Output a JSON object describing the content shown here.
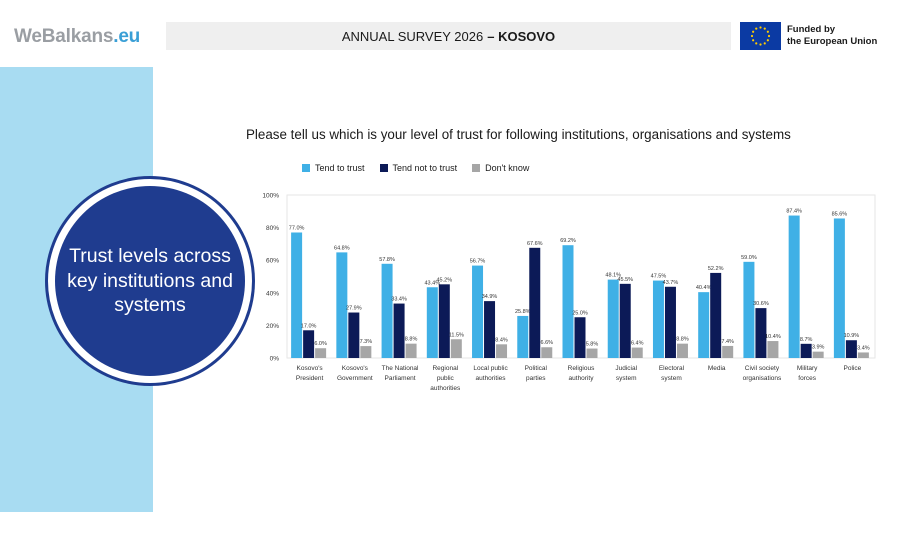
{
  "header": {
    "logo_main": "WeBalkans",
    "logo_tld": ".eu",
    "survey_label": "ANNUAL SURVEY 2026",
    "country": "– KOSOVO",
    "funding_line1": "Funded by",
    "funding_line2": "the European Union"
  },
  "side_panel": {
    "title": "Trust levels across key institutions and systems"
  },
  "colors": {
    "tend_to_trust": "#3fb0e6",
    "tend_not_to_trust": "#0c1a57",
    "dont_know": "#a6a6a6",
    "circle": "#1f3c8f",
    "side_panel": "#a8dcf2"
  },
  "chart_data": {
    "type": "bar",
    "title": "Please tell us which is your level of trust for following institutions, organisations and systems",
    "categories": [
      [
        "Kosovo's",
        "President"
      ],
      [
        "Kosovo's",
        "Government"
      ],
      [
        "The National",
        "Parliament"
      ],
      [
        "Regional",
        "public",
        "authorities"
      ],
      [
        "Local public",
        "authorities"
      ],
      [
        "Political",
        "parties"
      ],
      [
        "Religious",
        "authority"
      ],
      [
        "Judicial",
        "system"
      ],
      [
        "Electoral",
        "system"
      ],
      [
        "Media"
      ],
      [
        "Civil society",
        "organisations"
      ],
      [
        "Military",
        "forces"
      ],
      [
        "Police"
      ]
    ],
    "series": [
      {
        "name": "Tend to trust",
        "values": [
          77.0,
          64.8,
          57.8,
          43.4,
          56.7,
          25.8,
          69.2,
          48.1,
          47.5,
          40.4,
          59.0,
          87.4,
          85.6
        ]
      },
      {
        "name": "Tend not to trust",
        "values": [
          17.0,
          27.9,
          33.4,
          45.2,
          34.9,
          67.6,
          25.0,
          45.5,
          43.7,
          52.2,
          30.6,
          8.7,
          10.9
        ]
      },
      {
        "name": "Don't know",
        "values": [
          6.0,
          7.3,
          8.8,
          11.5,
          8.4,
          6.6,
          5.8,
          6.4,
          8.8,
          7.4,
          10.4,
          3.9,
          3.4
        ]
      }
    ],
    "yticks": [
      "0%",
      "20%",
      "40%",
      "60%",
      "80%",
      "100%"
    ],
    "ylim": [
      0,
      100
    ],
    "xlabel": "",
    "ylabel": "",
    "legend_position": "top-left",
    "grid": false
  }
}
